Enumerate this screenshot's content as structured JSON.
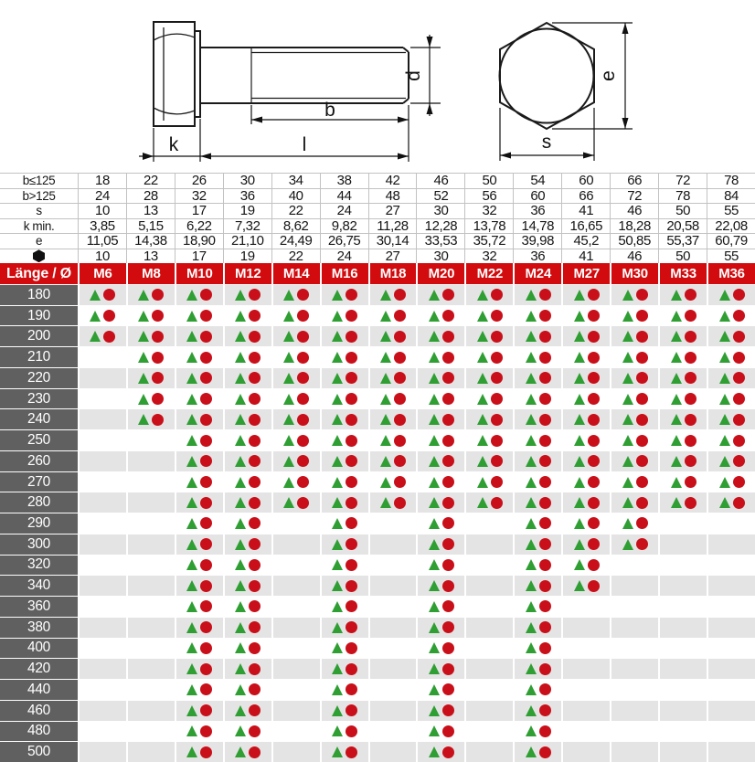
{
  "drawing": {
    "side_labels": {
      "k": "k",
      "l": "l",
      "b": "b",
      "d": "d"
    },
    "end_labels": {
      "e": "e",
      "s": "s"
    }
  },
  "dimension_table": {
    "rows": [
      {
        "label": "b≤125",
        "icon": null,
        "values": [
          "18",
          "22",
          "26",
          "30",
          "34",
          "38",
          "42",
          "46",
          "50",
          "54",
          "60",
          "66",
          "72",
          "78"
        ]
      },
      {
        "label": "b>125",
        "icon": null,
        "values": [
          "24",
          "28",
          "32",
          "36",
          "40",
          "44",
          "48",
          "52",
          "56",
          "60",
          "66",
          "72",
          "78",
          "84"
        ]
      },
      {
        "label": "s",
        "icon": null,
        "values": [
          "10",
          "13",
          "17",
          "19",
          "22",
          "24",
          "27",
          "30",
          "32",
          "36",
          "41",
          "46",
          "50",
          "55"
        ]
      },
      {
        "label": "k min.",
        "icon": null,
        "values": [
          "3,85",
          "5,15",
          "6,22",
          "7,32",
          "8,62",
          "9,82",
          "11,28",
          "12,28",
          "13,78",
          "14,78",
          "16,65",
          "18,28",
          "20,58",
          "22,08"
        ]
      },
      {
        "label": "e",
        "icon": null,
        "values": [
          "11,05",
          "14,38",
          "18,90",
          "21,10",
          "24,49",
          "26,75",
          "30,14",
          "33,53",
          "35,72",
          "39,98",
          "45,2",
          "50,85",
          "55,37",
          "60,79"
        ]
      },
      {
        "label": "",
        "icon": "hexagon-icon",
        "values": [
          "10",
          "13",
          "17",
          "19",
          "22",
          "24",
          "27",
          "30",
          "32",
          "36",
          "41",
          "46",
          "50",
          "55"
        ]
      }
    ]
  },
  "matrix": {
    "corner_label": "Länge / Ø",
    "columns": [
      "M6",
      "M8",
      "M10",
      "M12",
      "M14",
      "M16",
      "M18",
      "M20",
      "M22",
      "M24",
      "M27",
      "M30",
      "M33",
      "M36"
    ],
    "rows": [
      {
        "length": "180",
        "available": [
          1,
          1,
          1,
          1,
          1,
          1,
          1,
          1,
          1,
          1,
          1,
          1,
          1,
          1
        ]
      },
      {
        "length": "190",
        "available": [
          1,
          1,
          1,
          1,
          1,
          1,
          1,
          1,
          1,
          1,
          1,
          1,
          1,
          1
        ]
      },
      {
        "length": "200",
        "available": [
          1,
          1,
          1,
          1,
          1,
          1,
          1,
          1,
          1,
          1,
          1,
          1,
          1,
          1
        ]
      },
      {
        "length": "210",
        "available": [
          0,
          1,
          1,
          1,
          1,
          1,
          1,
          1,
          1,
          1,
          1,
          1,
          1,
          1
        ]
      },
      {
        "length": "220",
        "available": [
          0,
          1,
          1,
          1,
          1,
          1,
          1,
          1,
          1,
          1,
          1,
          1,
          1,
          1
        ]
      },
      {
        "length": "230",
        "available": [
          0,
          1,
          1,
          1,
          1,
          1,
          1,
          1,
          1,
          1,
          1,
          1,
          1,
          1
        ]
      },
      {
        "length": "240",
        "available": [
          0,
          1,
          1,
          1,
          1,
          1,
          1,
          1,
          1,
          1,
          1,
          1,
          1,
          1
        ]
      },
      {
        "length": "250",
        "available": [
          0,
          0,
          1,
          1,
          1,
          1,
          1,
          1,
          1,
          1,
          1,
          1,
          1,
          1
        ]
      },
      {
        "length": "260",
        "available": [
          0,
          0,
          1,
          1,
          1,
          1,
          1,
          1,
          1,
          1,
          1,
          1,
          1,
          1
        ]
      },
      {
        "length": "270",
        "available": [
          0,
          0,
          1,
          1,
          1,
          1,
          1,
          1,
          1,
          1,
          1,
          1,
          1,
          1
        ]
      },
      {
        "length": "280",
        "available": [
          0,
          0,
          1,
          1,
          1,
          1,
          1,
          1,
          1,
          1,
          1,
          1,
          1,
          1
        ]
      },
      {
        "length": "290",
        "available": [
          0,
          0,
          1,
          1,
          0,
          1,
          0,
          1,
          0,
          1,
          1,
          1,
          0,
          0
        ]
      },
      {
        "length": "300",
        "available": [
          0,
          0,
          1,
          1,
          0,
          1,
          0,
          1,
          0,
          1,
          1,
          1,
          0,
          0
        ]
      },
      {
        "length": "320",
        "available": [
          0,
          0,
          1,
          1,
          0,
          1,
          0,
          1,
          0,
          1,
          1,
          0,
          0,
          0
        ]
      },
      {
        "length": "340",
        "available": [
          0,
          0,
          1,
          1,
          0,
          1,
          0,
          1,
          0,
          1,
          1,
          0,
          0,
          0
        ]
      },
      {
        "length": "360",
        "available": [
          0,
          0,
          1,
          1,
          0,
          1,
          0,
          1,
          0,
          1,
          0,
          0,
          0,
          0
        ]
      },
      {
        "length": "380",
        "available": [
          0,
          0,
          1,
          1,
          0,
          1,
          0,
          1,
          0,
          1,
          0,
          0,
          0,
          0
        ]
      },
      {
        "length": "400",
        "available": [
          0,
          0,
          1,
          1,
          0,
          1,
          0,
          1,
          0,
          1,
          0,
          0,
          0,
          0
        ]
      },
      {
        "length": "420",
        "available": [
          0,
          0,
          1,
          1,
          0,
          1,
          0,
          1,
          0,
          1,
          0,
          0,
          0,
          0
        ]
      },
      {
        "length": "440",
        "available": [
          0,
          0,
          1,
          1,
          0,
          1,
          0,
          1,
          0,
          1,
          0,
          0,
          0,
          0
        ]
      },
      {
        "length": "460",
        "available": [
          0,
          0,
          1,
          1,
          0,
          1,
          0,
          1,
          0,
          1,
          0,
          0,
          0,
          0
        ]
      },
      {
        "length": "480",
        "available": [
          0,
          0,
          1,
          1,
          0,
          1,
          0,
          1,
          0,
          1,
          0,
          0,
          0,
          0
        ]
      },
      {
        "length": "500",
        "available": [
          0,
          0,
          1,
          1,
          0,
          1,
          0,
          1,
          0,
          1,
          0,
          0,
          0,
          0
        ]
      }
    ]
  },
  "colors": {
    "header_red": "#d10b0e",
    "triangle_green": "#2f9e33",
    "circle_red": "#c90f19",
    "length_gray": "#606060",
    "row_stripe": "#e4e4e4",
    "grid_line": "#c2c2c2"
  }
}
